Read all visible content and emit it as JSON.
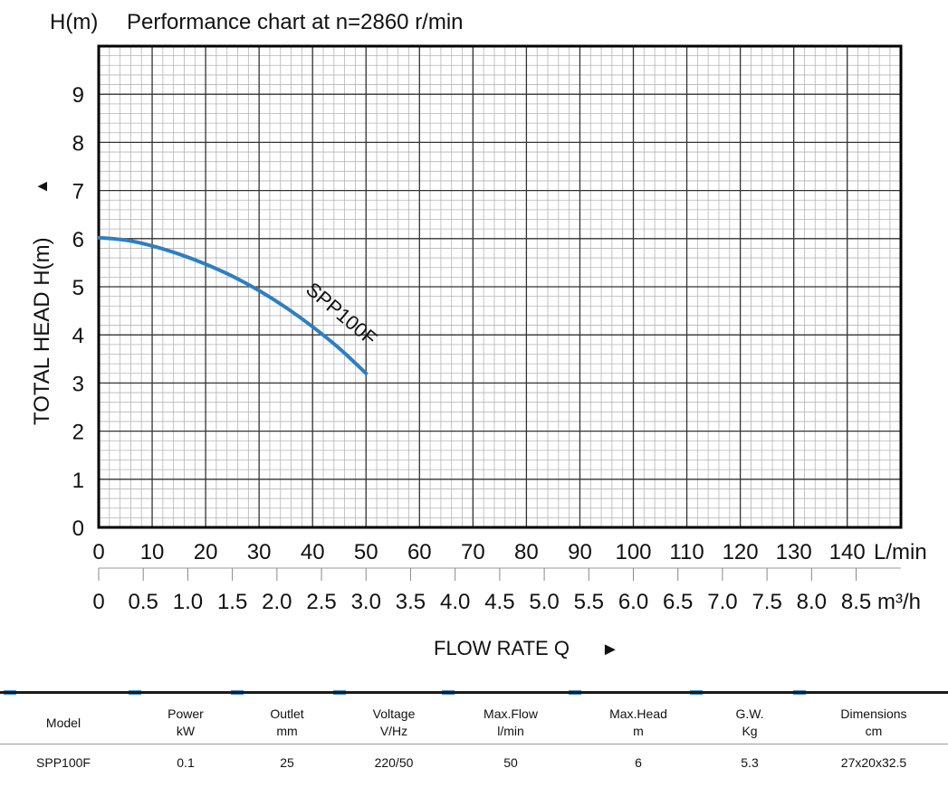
{
  "chart_data": {
    "type": "line",
    "header_unit": "H(m)",
    "title": "Performance chart at n=2860 r/min",
    "ylabel": "TOTAL HEAD  H(m)",
    "ylabel_arrow": "▲",
    "xlabel": "FLOW RATE Q",
    "xlabel_arrow": "►",
    "ylim": [
      0,
      10
    ],
    "xlim": [
      0,
      150
    ],
    "y_ticks": [
      "0",
      "1",
      "2",
      "3",
      "4",
      "5",
      "6",
      "7",
      "8",
      "9"
    ],
    "x_ticks_lpm": [
      "0",
      "10",
      "20",
      "30",
      "40",
      "50",
      "60",
      "70",
      "80",
      "90",
      "100",
      "110",
      "120",
      "130",
      "140"
    ],
    "x_unit_lpm": "L/min",
    "x_ticks_m3h": [
      "0",
      "0.5",
      "1.0",
      "1.5",
      "2.0",
      "2.5",
      "3.0",
      "3.5",
      "4.0",
      "4.5",
      "5.0",
      "5.5",
      "6.0",
      "6.5",
      "7.0",
      "7.5",
      "8.0",
      "8.5"
    ],
    "x_unit_m3h": "m³/h",
    "grid": true,
    "series": [
      {
        "name": "SPP100F",
        "color": "#2e7fc0",
        "x": [
          0,
          5,
          10,
          15,
          20,
          25,
          30,
          35,
          40,
          45,
          50
        ],
        "y": [
          6.02,
          5.97,
          5.85,
          5.68,
          5.47,
          5.22,
          4.92,
          4.57,
          4.17,
          3.72,
          3.2
        ]
      }
    ]
  },
  "spec_table": {
    "headers": [
      {
        "name": "Model",
        "unit": ""
      },
      {
        "name": "Power",
        "unit": "kW"
      },
      {
        "name": "Outlet",
        "unit": "mm"
      },
      {
        "name": "Voltage",
        "unit": "V/Hz"
      },
      {
        "name": "Max.Flow",
        "unit": "l/min"
      },
      {
        "name": "Max.Head",
        "unit": "m"
      },
      {
        "name": "G.W.",
        "unit": "Kg"
      },
      {
        "name": "Dimensions",
        "unit": "cm"
      }
    ],
    "rows": [
      [
        "SPP100F",
        "0.1",
        "25",
        "220/50",
        "50",
        "6",
        "5.3",
        "27x20x32.5"
      ]
    ],
    "accent_color": "#3d8ccc"
  }
}
